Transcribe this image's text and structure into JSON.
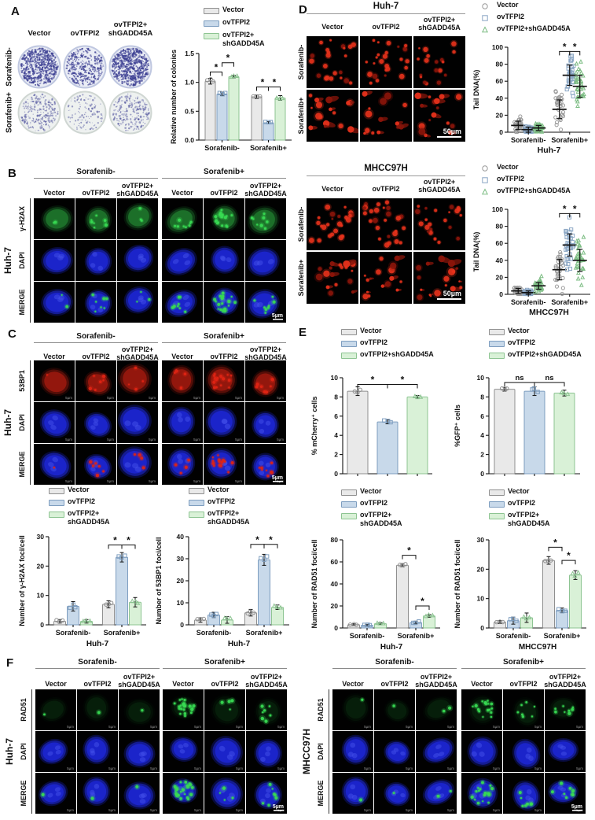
{
  "series_style": {
    "fills": [
      "#e9e9e9",
      "#c8d9ea",
      "#d9f1d7"
    ],
    "edges": [
      "#8f8f8f",
      "#7d9dbf",
      "#8dc492"
    ],
    "marker_colors": [
      "#9a9a9a",
      "#8aa6c4",
      "#7dbd84"
    ]
  },
  "if_colors": {
    "dapi": "#1b25cc",
    "green": "#38da52",
    "red": "#de2414",
    "comet": "#d92008",
    "colony": "#3b3e92"
  },
  "panelA": {
    "label": "A",
    "col_headers": [
      [
        "Vector"
      ],
      [
        "ovTFPI2"
      ],
      [
        "ovTFPI2+",
        "shGADD45A"
      ]
    ],
    "row_labels": [
      "Sorafenib-",
      "Sorafenib+"
    ],
    "dishes": {
      "dot_counts": [
        [
          620,
          360,
          680
        ],
        [
          250,
          120,
          230
        ]
      ],
      "row_bg": [
        "#eaedf5",
        "#eef1f0"
      ],
      "row_rim": [
        "#bfc7e0",
        "#cfd6d2"
      ],
      "row_alpha": [
        0.85,
        0.55
      ]
    },
    "chart": {
      "type": "bar",
      "ylabel": "Relative number of colonies",
      "ylim": [
        0,
        1.5
      ],
      "yticks": [
        "0.0",
        "0.5",
        "1.0",
        "1.5"
      ],
      "categories": [
        "Sorafenib-",
        "Sorafenib+"
      ],
      "xlabel": "",
      "legend": {
        "style": "bar",
        "items": [
          [
            "Vector"
          ],
          [
            "ovTFPI2"
          ],
          [
            "ovTFPI2+",
            "shGADD45A"
          ]
        ]
      },
      "series": [
        {
          "name": "Vector",
          "values": [
            1.02,
            0.75
          ],
          "err": [
            0.05,
            0.03
          ]
        },
        {
          "name": "ovTFPI2",
          "values": [
            0.8,
            0.3
          ],
          "err": [
            0.03,
            0.02
          ]
        },
        {
          "name": "ovTFPI2+shGADD45A",
          "values": [
            1.1,
            0.73
          ],
          "err": [
            0.02,
            0.04
          ]
        }
      ],
      "sig": [
        {
          "cat": 0,
          "a": 0,
          "b": 1,
          "y": 1.18,
          "label": "*"
        },
        {
          "cat": 0,
          "a": 1,
          "b": 2,
          "y": 1.34,
          "label": "*"
        },
        {
          "cat": 1,
          "a": 0,
          "b": 1,
          "y": 0.92,
          "label": "*"
        },
        {
          "cat": 1,
          "a": 1,
          "b": 2,
          "y": 0.92,
          "label": "*"
        }
      ]
    }
  },
  "panelB": {
    "label": "B",
    "cell": "Huh-7",
    "treatments": [
      "Sorafenib-",
      "Sorafenib+"
    ],
    "col_headers": [
      [
        "Vector"
      ],
      [
        "ovTFPI2"
      ],
      [
        "ovTFPI2+",
        "shGADD45A"
      ],
      [
        "Vector"
      ],
      [
        "ovTFPI2"
      ],
      [
        "ovTFPI2+",
        "shGADD45A"
      ]
    ],
    "row_labels": [
      "γ-H2AX",
      "DAPI",
      "MERGE"
    ],
    "marker": "green",
    "marker_bg_alpha": 0.32,
    "foci": [
      2,
      7,
      3,
      8,
      18,
      8
    ],
    "scale": "5µm"
  },
  "panelC": {
    "label": "C",
    "cell": "Huh-7",
    "treatments": [
      "Sorafenib-",
      "Sorafenib+"
    ],
    "col_headers": [
      [
        "Vector"
      ],
      [
        "ovTFPI2"
      ],
      [
        "ovTFPI2+",
        "shGADD45A"
      ],
      [
        "Vector"
      ],
      [
        "ovTFPI2"
      ],
      [
        "ovTFPI2+",
        "shGADD45A"
      ]
    ],
    "row_labels": [
      "53BP1",
      "DAPI",
      "MERGE"
    ],
    "marker": "red",
    "marker_bg_alpha": 0.45,
    "foci": [
      1,
      6,
      4,
      4,
      16,
      8
    ],
    "scale": "5µm",
    "tile_scale": "5µm",
    "charts": {
      "gh2ax": {
        "type": "bar",
        "ylabel": "Number of γ-H2AX foci/cell",
        "ylim": [
          0,
          30
        ],
        "yticks": [
          "0",
          "10",
          "20",
          "30"
        ],
        "categories": [
          "Sorafenib-",
          "Sorafenib+"
        ],
        "xlabel": "Huh-7",
        "legend": {
          "style": "bar",
          "items": [
            [
              "Vector"
            ],
            [
              "ovTFPI2"
            ],
            [
              "ovTFPI2+",
              "shGADD45A"
            ]
          ]
        },
        "series": [
          {
            "name": "Vector",
            "values": [
              1.2,
              7.0
            ],
            "err": [
              0.6,
              1.2
            ]
          },
          {
            "name": "ovTFPI2",
            "values": [
              6.3,
              23.0
            ],
            "err": [
              1.6,
              1.6
            ]
          },
          {
            "name": "ovTFPI2+shGADD45A",
            "values": [
              1.2,
              7.7
            ],
            "err": [
              0.6,
              1.6
            ]
          }
        ],
        "sig": [
          {
            "cat": 1,
            "a": 0,
            "b": 1,
            "y": 27.2,
            "label": "*"
          },
          {
            "cat": 1,
            "a": 1,
            "b": 2,
            "y": 27.2,
            "label": "*"
          }
        ]
      },
      "bp1": {
        "type": "bar",
        "ylabel": "Number of 53BP1 foci/cell",
        "ylim": [
          0,
          40
        ],
        "yticks": [
          "0",
          "10",
          "20",
          "30",
          "40"
        ],
        "categories": [
          "Sorafenib-",
          "Sorafenib+"
        ],
        "xlabel": "Huh-7",
        "legend": {
          "style": "bar",
          "items": [
            [
              "Vector"
            ],
            [
              "ovTFPI2"
            ],
            [
              "ovTFPI2+",
              "shGADD45A"
            ]
          ]
        },
        "series": [
          {
            "name": "Vector",
            "values": [
              2.2,
              5.5
            ],
            "err": [
              1.0,
              1.5
            ]
          },
          {
            "name": "ovTFPI2",
            "values": [
              4.5,
              29.5
            ],
            "err": [
              1.2,
              2.5
            ]
          },
          {
            "name": "ovTFPI2+shGADD45A",
            "values": [
              2.2,
              8.0
            ],
            "err": [
              1.5,
              1.0
            ]
          }
        ],
        "sig": [
          {
            "cat": 1,
            "a": 0,
            "b": 1,
            "y": 36.5,
            "label": "*"
          },
          {
            "cat": 1,
            "a": 1,
            "b": 2,
            "y": 36.5,
            "label": "*"
          }
        ]
      }
    }
  },
  "panelD": {
    "label": "D",
    "blocks": [
      {
        "title": "Huh-7",
        "col_headers": [
          [
            "Vector"
          ],
          [
            "ovTFPI2"
          ],
          [
            "ovTFPI2+",
            "shGADD45A"
          ]
        ],
        "row_labels": [
          "Sorafenib-",
          "Sorafenib+"
        ],
        "comets": [
          [
            22,
            26,
            18
          ],
          [
            16,
            15,
            16
          ]
        ],
        "scale": "50µm",
        "chart": {
          "type": "scatter",
          "ylabel": "Tail DNA(%)",
          "ylim": [
            0,
            100
          ],
          "yticks": [
            "0",
            "20",
            "40",
            "60",
            "80",
            "100"
          ],
          "categories": [
            "Sorafenib-",
            "Sorafenib+"
          ],
          "xlabel": "Huh-7",
          "n": 32,
          "legend": {
            "style": "marker",
            "items": [
              [
                "Vector"
              ],
              [
                "ovTFPI2"
              ],
              [
                "ovTFPI2+shGADD45A"
              ]
            ]
          },
          "series": [
            {
              "name": "Vector",
              "means": [
                8,
                27
              ],
              "sd": [
                5,
                11
              ]
            },
            {
              "name": "ovTFPI2",
              "means": [
                3,
                67
              ],
              "sd": [
                3,
                12
              ]
            },
            {
              "name": "ovTFPI2+shGADD45A",
              "means": [
                5,
                54
              ],
              "sd": [
                3,
                13
              ]
            }
          ],
          "sig": [
            {
              "cat": 1,
              "a": 0,
              "b": 1,
              "y": 95,
              "label": "*"
            },
            {
              "cat": 1,
              "a": 1,
              "b": 2,
              "y": 95,
              "label": "*"
            }
          ]
        }
      },
      {
        "title": "MHCC97H",
        "col_headers": [
          [
            "Vector"
          ],
          [
            "ovTFPI2"
          ],
          [
            "ovTFPI2+",
            "shGADD45A"
          ]
        ],
        "row_labels": [
          "Sorafenib-",
          "Sorafenib+"
        ],
        "comets": [
          [
            24,
            26,
            22
          ],
          [
            17,
            16,
            18
          ]
        ],
        "scale": "50µm",
        "chart": {
          "type": "scatter",
          "ylabel": "Tail DNA(%)",
          "ylim": [
            0,
            100
          ],
          "yticks": [
            "0",
            "20",
            "40",
            "60",
            "80",
            "100"
          ],
          "categories": [
            "Sorafenib-",
            "Sorafenib+"
          ],
          "xlabel": "MHCC97H",
          "n": 32,
          "legend": {
            "style": "marker",
            "items": [
              [
                "Vector"
              ],
              [
                "ovTFPI2"
              ],
              [
                "ovTFPI2+shGADD45A"
              ]
            ]
          },
          "series": [
            {
              "name": "Vector",
              "means": [
                4,
                29
              ],
              "sd": [
                3,
                12
              ]
            },
            {
              "name": "ovTFPI2",
              "means": [
                2,
                58
              ],
              "sd": [
                2,
                13
              ]
            },
            {
              "name": "ovTFPI2+shGADD45A",
              "means": [
                10,
                40
              ],
              "sd": [
                4,
                13
              ]
            }
          ],
          "sig": [
            {
              "cat": 1,
              "a": 0,
              "b": 1,
              "y": 95,
              "label": "*"
            },
            {
              "cat": 1,
              "a": 1,
              "b": 2,
              "y": 95,
              "label": "*"
            }
          ]
        }
      }
    ]
  },
  "panelE": {
    "label": "E",
    "charts": {
      "mcherry": {
        "type": "bar",
        "ylabel": "% mCherry⁺ cells",
        "ylim": [
          0,
          10
        ],
        "yticks": [
          "0",
          "2",
          "4",
          "6",
          "8",
          "10"
        ],
        "categories": [
          ""
        ],
        "xlabel": "",
        "legend": {
          "style": "bar",
          "items": [
            [
              "Vector"
            ],
            [
              "ovTFPI2"
            ],
            [
              "ovTFPI2+shGADD45A"
            ]
          ]
        },
        "series": [
          {
            "name": "Vector",
            "values": [
              8.6
            ],
            "err": [
              0.45
            ]
          },
          {
            "name": "ovTFPI2",
            "values": [
              5.4
            ],
            "err": [
              0.2
            ]
          },
          {
            "name": "ovTFPI2+shGADD45A",
            "values": [
              8.0
            ],
            "err": [
              0.15
            ]
          }
        ],
        "sig": [
          {
            "cat": 0,
            "a": 0,
            "b": 1,
            "y": 9.3,
            "label": "*"
          },
          {
            "cat": 0,
            "a": 1,
            "b": 2,
            "y": 9.3,
            "label": "*"
          }
        ]
      },
      "gfp": {
        "type": "bar",
        "ylabel": "%GFP⁺ cells",
        "ylim": [
          0,
          10
        ],
        "yticks": [
          "0",
          "2",
          "4",
          "6",
          "8",
          "10"
        ],
        "categories": [
          ""
        ],
        "xlabel": "",
        "legend": {
          "style": "bar",
          "items": [
            [
              "Vector"
            ],
            [
              "ovTFPI2"
            ],
            [
              "ovTFPI2+shGADD45A"
            ]
          ]
        },
        "series": [
          {
            "name": "Vector",
            "values": [
              8.8
            ],
            "err": [
              0.2
            ]
          },
          {
            "name": "ovTFPI2",
            "values": [
              8.6
            ],
            "err": [
              0.45
            ]
          },
          {
            "name": "ovTFPI2+shGADD45A",
            "values": [
              8.4
            ],
            "err": [
              0.3
            ]
          }
        ],
        "sig": [
          {
            "cat": 0,
            "a": 0,
            "b": 1,
            "y": 9.5,
            "label": "ns"
          },
          {
            "cat": 0,
            "a": 1,
            "b": 2,
            "y": 9.5,
            "label": "ns"
          }
        ]
      },
      "rad51_huh7": {
        "type": "bar",
        "ylabel": "Number of RAD51 foci/cell",
        "ylim": [
          0,
          80
        ],
        "yticks": [
          "0",
          "20",
          "40",
          "60",
          "80"
        ],
        "categories": [
          "Sorafenib-",
          "Sorafenib+"
        ],
        "xlabel": "Huh-7",
        "legend": {
          "style": "bar",
          "items": [
            [
              "Vector"
            ],
            [
              "ovTFPI2"
            ],
            [
              "ovTFPI2+",
              "shGADD45A"
            ]
          ]
        },
        "series": [
          {
            "name": "Vector",
            "values": [
              3,
              57
            ],
            "err": [
              0.8,
              1.5
            ]
          },
          {
            "name": "ovTFPI2",
            "values": [
              2.5,
              5
            ],
            "err": [
              0.8,
              1.2
            ]
          },
          {
            "name": "ovTFPI2+shGADD45A",
            "values": [
              4,
              11
            ],
            "err": [
              0.8,
              1.2
            ]
          }
        ],
        "sig": [
          {
            "cat": 1,
            "a": 0,
            "b": 1,
            "y": 66,
            "label": "*"
          },
          {
            "cat": 1,
            "a": 1,
            "b": 2,
            "y": 20,
            "label": "*"
          }
        ]
      },
      "rad51_mhcc": {
        "type": "bar",
        "ylabel": "Number of RAD51 foci/cell",
        "ylim": [
          0,
          30
        ],
        "yticks": [
          "0",
          "10",
          "20",
          "30"
        ],
        "categories": [
          "Sorafenib-",
          "Sorafenib+"
        ],
        "xlabel": "MHCC97H",
        "legend": {
          "style": "bar",
          "items": [
            [
              "Vector"
            ],
            [
              "ovTFPI2"
            ],
            [
              "ovTFPI2+",
              "shGADD45A"
            ]
          ]
        },
        "series": [
          {
            "name": "Vector",
            "values": [
              2,
              23
            ],
            "err": [
              0.5,
              1.3
            ]
          },
          {
            "name": "ovTFPI2",
            "values": [
              2.5,
              6
            ],
            "err": [
              1.2,
              0.8
            ]
          },
          {
            "name": "ovTFPI2+shGADD45A",
            "values": [
              3.5,
              18
            ],
            "err": [
              1.6,
              1.5
            ]
          }
        ],
        "sig": [
          {
            "cat": 1,
            "a": 0,
            "b": 1,
            "y": 27.5,
            "label": "*"
          },
          {
            "cat": 1,
            "a": 1,
            "b": 2,
            "y": 23,
            "label": "*"
          }
        ]
      }
    }
  },
  "panelF": {
    "label": "F",
    "blocks": [
      {
        "cell": "Huh-7",
        "treatments": [
          "Sorafenib-",
          "Sorafenib+"
        ],
        "col_headers": [
          [
            "Vector"
          ],
          [
            "ovTFPI2"
          ],
          [
            "ovTFPI2+",
            "shGADD45A"
          ],
          [
            "Vector"
          ],
          [
            "ovTFPI2"
          ],
          [
            "ovTFPI2+",
            "shGADD45A"
          ]
        ],
        "row_labels": [
          "RAD51",
          "DAPI",
          "MERGE"
        ],
        "marker": "green",
        "marker_bg_alpha": 0.08,
        "foci": [
          1,
          1,
          1,
          22,
          4,
          7
        ],
        "scale": "5µm",
        "tile_scale": "5µm"
      },
      {
        "cell": "MHCC97H",
        "treatments": [
          "Sorafenib-",
          "Sorafenib+"
        ],
        "col_headers": [
          [
            "Vector"
          ],
          [
            "ovTFPI2"
          ],
          [
            "ovTFPI2+",
            "shGADD45A"
          ],
          [
            "Vector"
          ],
          [
            "ovTFPI2"
          ],
          [
            "ovTFPI2+",
            "shGADD45A"
          ]
        ],
        "row_labels": [
          "RAD51",
          "DAPI",
          "MERGE"
        ],
        "marker": "green",
        "marker_bg_alpha": 0.08,
        "foci": [
          1,
          1,
          2,
          16,
          7,
          9
        ],
        "scale": "5µm",
        "tile_scale": "5µm"
      }
    ]
  }
}
